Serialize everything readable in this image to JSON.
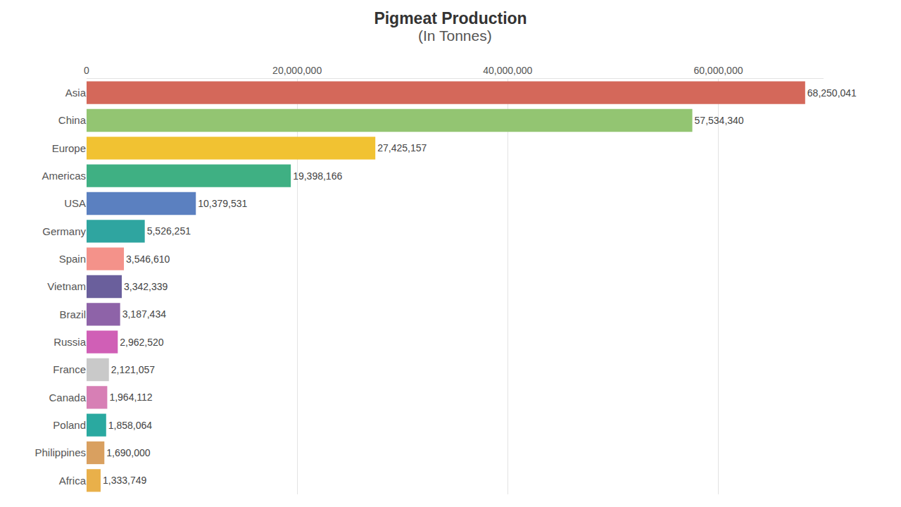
{
  "chart_data": {
    "type": "bar",
    "title": "Pigmeat Production",
    "subtitle": "(In Tonnes)",
    "orientation": "horizontal",
    "categories": [
      "Asia",
      "China",
      "Europe",
      "Americas",
      "USA",
      "Germany",
      "Spain",
      "Vietnam",
      "Brazil",
      "Russia",
      "France",
      "Canada",
      "Poland",
      "Philippines",
      "Africa"
    ],
    "values": [
      68250041,
      57534340,
      27425157,
      19398166,
      10379531,
      5526251,
      3546610,
      3342339,
      3187434,
      2962520,
      2121057,
      1964112,
      1858064,
      1690000,
      1333749
    ],
    "value_labels": [
      "68,250,041",
      "57,534,340",
      "27,425,157",
      "19,398,166",
      "10,379,531",
      "5,526,251",
      "3,546,610",
      "3,342,339",
      "3,187,434",
      "2,962,520",
      "2,121,057",
      "1,964,112",
      "1,858,064",
      "1,690,000",
      "1,333,749"
    ],
    "colors": [
      "#d4685a",
      "#93c572",
      "#f1c232",
      "#3fb083",
      "#5b80c0",
      "#2fa5a0",
      "#f4928a",
      "#6a5f9c",
      "#8e63a8",
      "#d05fb6",
      "#c9c9c9",
      "#d77fb5",
      "#2aa9a0",
      "#d9a060",
      "#e9b04a"
    ],
    "xlim": [
      0,
      70000000
    ],
    "xticks": [
      0,
      {
        "value": 20000000,
        "label": "20,000,000"
      },
      {
        "value": 40000000,
        "label": "40,000,000"
      },
      {
        "value": 60000000,
        "label": "60,000,000"
      }
    ],
    "grid": true,
    "data_labels": true
  }
}
